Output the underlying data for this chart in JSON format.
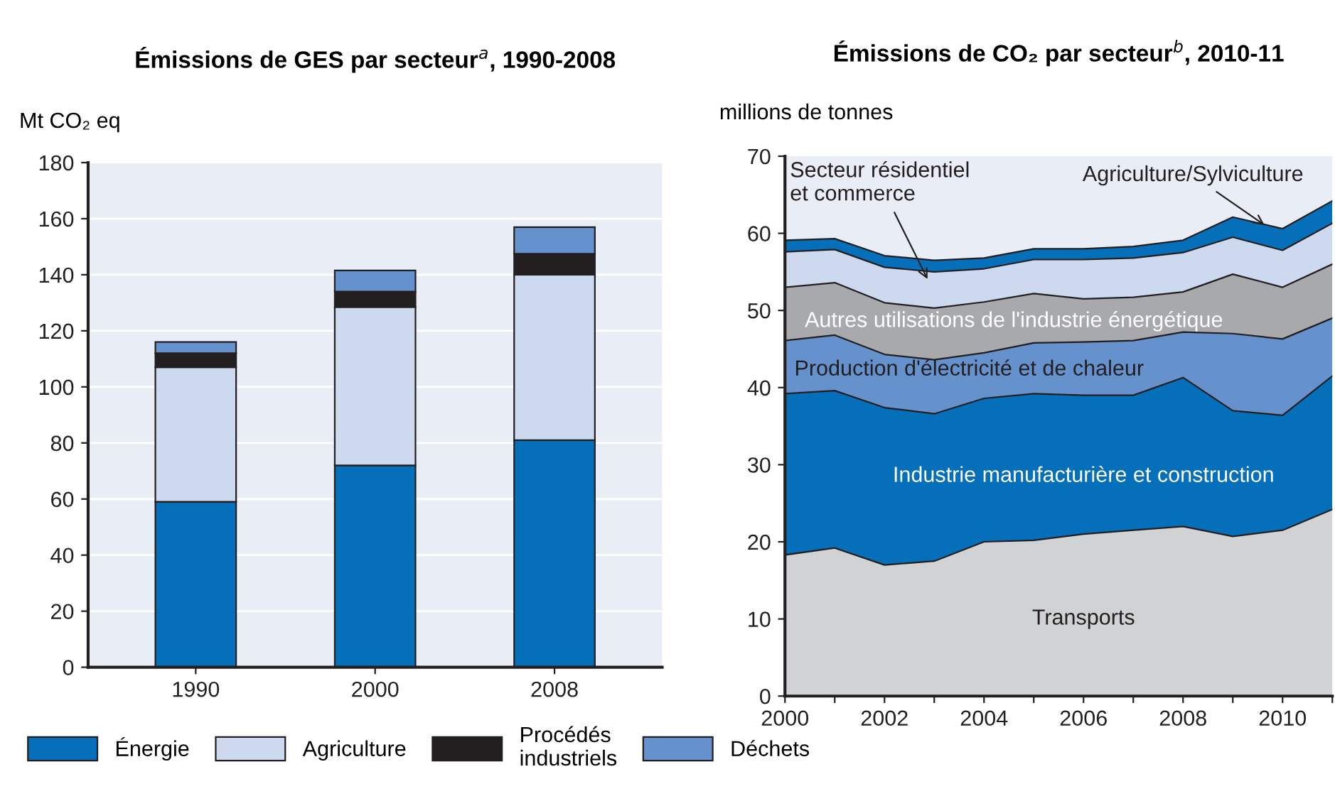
{
  "chart_data": [
    {
      "type": "bar",
      "stacked": true,
      "title": "Émissions de GES par secteur$^{a}$, 1990-2008",
      "ylabel": "Mt CO₂ eq",
      "categories": [
        "1990",
        "2000",
        "2008"
      ],
      "series": [
        {
          "name": "Énergie",
          "color": "#0570b9",
          "values": [
            59,
            72,
            81
          ]
        },
        {
          "name": "Agriculture",
          "color": "#cdd9ee",
          "values": [
            48,
            56.5,
            59
          ]
        },
        {
          "name": "Procédés\nindustriels",
          "color": "#231f20",
          "values": [
            5,
            5.5,
            7.5
          ]
        },
        {
          "name": "Déchets",
          "color": "#6592cc",
          "values": [
            4,
            7.5,
            9.5
          ]
        }
      ],
      "ylim": [
        0,
        180
      ],
      "yticks": [
        0,
        20,
        40,
        60,
        80,
        100,
        120,
        140,
        160,
        180
      ],
      "grid": "y",
      "legend": "bottom"
    },
    {
      "type": "area",
      "stacked": true,
      "title": "Émissions de CO₂ par secteur$^{b}$, 2010-11",
      "ylabel": "millions de tonnes",
      "x": [
        2000,
        2001,
        2002,
        2003,
        2004,
        2005,
        2006,
        2007,
        2008,
        2009,
        2010,
        2011
      ],
      "series": [
        {
          "name": "Transports",
          "color": "#d0d2d4",
          "values": [
            18.3,
            19.2,
            17,
            17.5,
            20,
            20.2,
            21,
            21.5,
            22,
            20.7,
            21.5,
            24.2
          ]
        },
        {
          "name": "Industrie manufacturière et construction",
          "color": "#0570b9",
          "values": [
            20.9,
            20.4,
            20.4,
            19.1,
            18.6,
            19.0,
            18.0,
            17.5,
            19.3,
            16.3,
            14.9,
            17.3
          ]
        },
        {
          "name": "Production d'électricité et de chaleur",
          "color": "#6592cc",
          "values": [
            6.9,
            7.2,
            6.9,
            7.0,
            5.9,
            6.6,
            6.9,
            7.1,
            5.9,
            10.0,
            9.9,
            7.5
          ]
        },
        {
          "name": "Autres utilisations de l'industrie énergétique",
          "color": "#a7a9ac",
          "values": [
            6.9,
            6.8,
            6.7,
            6.7,
            6.6,
            6.4,
            5.6,
            5.6,
            5.2,
            7.7,
            6.7,
            7.0
          ]
        },
        {
          "name": "Secteur résidentiel\net commerce",
          "color": "#cdd9ee",
          "values": [
            4.6,
            4.3,
            4.6,
            4.7,
            4.3,
            4.4,
            5.1,
            5.1,
            5.1,
            4.8,
            4.8,
            5.3
          ]
        },
        {
          "name": "Agriculture/Sylviculture",
          "color": "#0570b9",
          "values": [
            1.5,
            1.4,
            1.5,
            1.5,
            1.4,
            1.4,
            1.4,
            1.5,
            1.6,
            2.6,
            2.8,
            2.9
          ]
        }
      ],
      "xlim": [
        2000,
        2011
      ],
      "xticks": [
        2000,
        {
          "value": 2001,
          "label": null
        },
        2002,
        {
          "value": 2003,
          "label": null
        },
        2004,
        {
          "value": 2005,
          "label": null
        },
        2006,
        {
          "value": 2007,
          "label": null
        },
        2008,
        {
          "value": 2009,
          "label": null
        },
        2010,
        {
          "value": 2011,
          "label": null
        }
      ],
      "ylim": [
        0,
        70
      ],
      "yticks": [
        0,
        10,
        20,
        30,
        40,
        50,
        60,
        70
      ],
      "grid": false
    }
  ]
}
